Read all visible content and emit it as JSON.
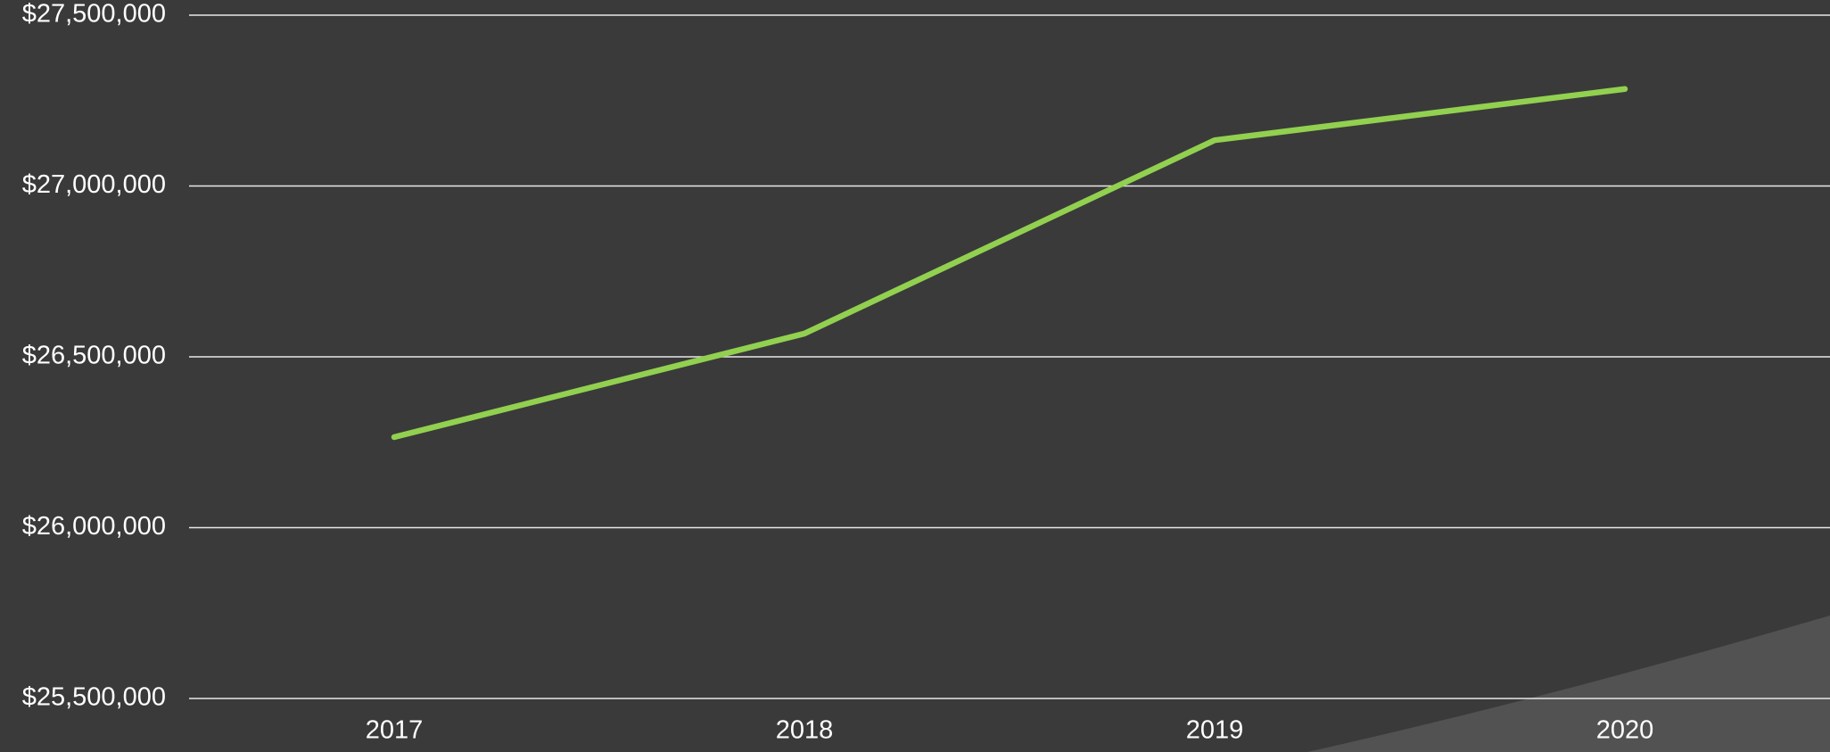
{
  "chart_data": {
    "type": "line",
    "categories": [
      "2017",
      "2018",
      "2019",
      "2020"
    ],
    "values": [
      26265000,
      26568000,
      27134000,
      27284000
    ],
    "color": "#92d050",
    "ylim": [
      25500000,
      27500000
    ],
    "yticks": [
      {
        "value": 25500000,
        "label": "$25,500,000"
      },
      {
        "value": 26000000,
        "label": "$26,000,000"
      },
      {
        "value": 26500000,
        "label": "$26,500,000"
      },
      {
        "value": 27000000,
        "label": "$27,000,000"
      },
      {
        "value": 27500000,
        "label": "$27,500,000"
      }
    ],
    "grid": true
  }
}
